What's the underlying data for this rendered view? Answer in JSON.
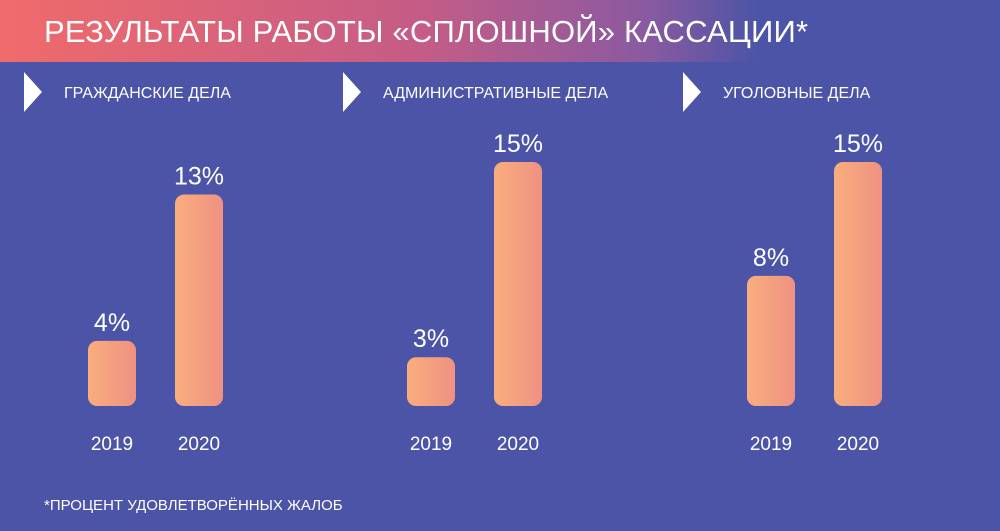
{
  "title": "РЕЗУЛЬТАТЫ РАБОТЫ «СПЛОШНОЙ» КАССАЦИИ*",
  "footnote": "*ПРОЦЕНТ УДОВЛЕТВОРЁННЫХ ЖАЛОБ",
  "colors": {
    "background": "#4b54a6",
    "bar_light": "#f9ae7e",
    "bar_dark": "#ef9182",
    "text": "#ffffff"
  },
  "chart_data": [
    {
      "type": "bar",
      "title": "ГРАЖДАНСКИЕ ДЕЛА",
      "categories": [
        "2019",
        "2020"
      ],
      "values": [
        4,
        13
      ],
      "labels": [
        "4%",
        "13%"
      ],
      "unit": "%",
      "ylim": [
        0,
        15
      ]
    },
    {
      "type": "bar",
      "title": "АДМИНИСТРАТИВНЫЕ ДЕЛА",
      "categories": [
        "2019",
        "2020"
      ],
      "values": [
        3,
        15
      ],
      "labels": [
        "3%",
        "15%"
      ],
      "unit": "%",
      "ylim": [
        0,
        15
      ]
    },
    {
      "type": "bar",
      "title": "УГОЛОВНЫЕ ДЕЛА",
      "categories": [
        "2019",
        "2020"
      ],
      "values": [
        8,
        15
      ],
      "labels": [
        "8%",
        "15%"
      ],
      "unit": "%",
      "ylim": [
        0,
        15
      ]
    }
  ]
}
